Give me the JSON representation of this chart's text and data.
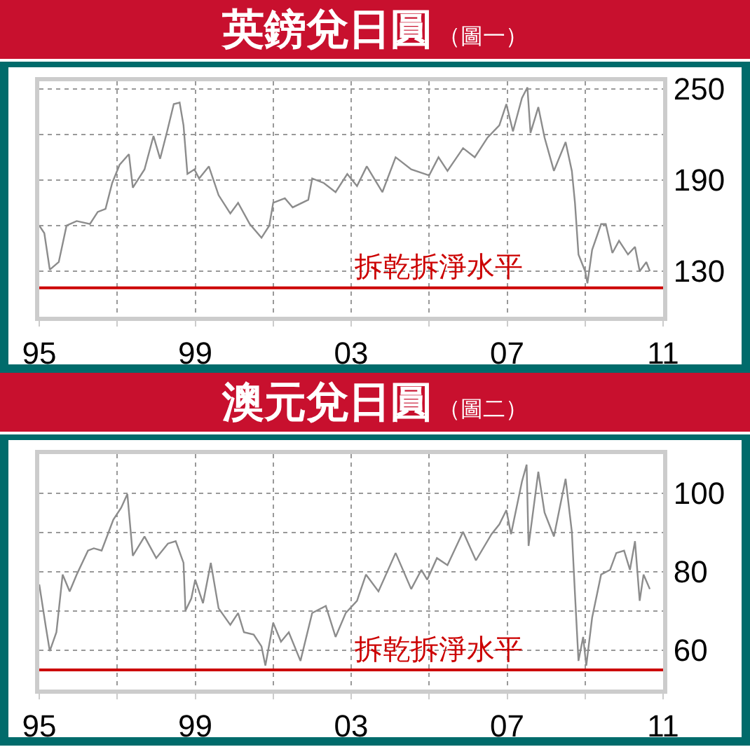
{
  "chart_data": [
    {
      "type": "line",
      "title": "英鎊兌日圓",
      "subtitle": "（圖一）",
      "grid": true,
      "xlim": [
        1995,
        2011
      ],
      "xticks": [
        {
          "value": 1995,
          "label": "95"
        },
        {
          "value": 1997,
          "label": null
        },
        {
          "value": 1999,
          "label": "99"
        },
        {
          "value": 2001,
          "label": null
        },
        {
          "value": 2003,
          "label": "03"
        },
        {
          "value": 2005,
          "label": null
        },
        {
          "value": 2007,
          "label": "07"
        },
        {
          "value": 2009,
          "label": null
        },
        {
          "value": 2011,
          "label": "11"
        }
      ],
      "ylim": [
        100,
        255
      ],
      "yticks": [
        130,
        {
          "value": 160,
          "label": null
        },
        190,
        {
          "value": 220,
          "label": null
        },
        250
      ],
      "ref_lines": [
        {
          "axis": "y",
          "value": 119,
          "label": "拆乾拆淨水平",
          "color": "#cc0000"
        }
      ],
      "series": [
        {
          "color": "#8c8c8c",
          "x": [
            1995.0,
            1995.13,
            1995.27,
            1995.5,
            1995.7,
            1995.96,
            1996.3,
            1996.5,
            1996.7,
            1996.87,
            1997.06,
            1997.3,
            1997.4,
            1997.7,
            1997.93,
            1998.1,
            1998.28,
            1998.45,
            1998.6,
            1998.7,
            1998.8,
            1998.98,
            1999.1,
            1999.35,
            1999.6,
            1999.9,
            2000.1,
            2000.4,
            2000.7,
            2000.9,
            2001.0,
            2001.3,
            2001.5,
            2001.9,
            2002.0,
            2002.3,
            2002.6,
            2002.9,
            2003.15,
            2003.4,
            2003.8,
            2004.14,
            2004.54,
            2005.0,
            2005.24,
            2005.47,
            2005.87,
            2006.17,
            2006.5,
            2006.8,
            2006.98,
            2007.15,
            2007.38,
            2007.52,
            2007.6,
            2007.8,
            2007.96,
            2008.2,
            2008.5,
            2008.66,
            2008.74,
            2008.83,
            2009.0,
            2009.06,
            2009.18,
            2009.41,
            2009.53,
            2009.7,
            2009.87,
            2010.1,
            2010.28,
            2010.4,
            2010.57,
            2010.66
          ],
          "values": [
            160,
            155,
            131,
            136,
            160,
            163,
            161,
            169,
            171,
            188,
            200,
            207,
            185,
            197,
            219,
            204,
            222,
            240,
            241,
            226,
            194,
            197,
            191,
            199,
            180,
            168,
            175,
            161,
            152,
            160,
            175,
            178,
            172,
            177,
            191,
            188,
            182,
            194,
            186,
            199,
            182,
            205,
            197,
            193,
            205,
            196,
            211,
            205,
            218,
            226,
            240,
            222,
            244,
            251,
            221,
            238,
            218,
            196,
            215,
            196,
            175,
            141,
            130,
            122,
            144,
            161,
            161,
            142,
            150,
            141,
            146,
            130,
            136,
            130
          ]
        }
      ]
    },
    {
      "type": "line",
      "title": "澳元兌日圓",
      "subtitle": "（圖二）",
      "grid": true,
      "xlim": [
        1995,
        2011
      ],
      "xticks": [
        {
          "value": 1995,
          "label": "95"
        },
        {
          "value": 1997,
          "label": null
        },
        {
          "value": 1999,
          "label": "99"
        },
        {
          "value": 2001,
          "label": null
        },
        {
          "value": 2003,
          "label": "03"
        },
        {
          "value": 2005,
          "label": null
        },
        {
          "value": 2007,
          "label": "07"
        },
        {
          "value": 2009,
          "label": null
        },
        {
          "value": 2011,
          "label": "11"
        }
      ],
      "ylim": [
        50,
        110
      ],
      "yticks": [
        60,
        {
          "value": 70,
          "label": null
        },
        80,
        {
          "value": 90,
          "label": null
        },
        100
      ],
      "ref_lines": [
        {
          "axis": "y",
          "value": 55,
          "label": "拆乾拆淨水平",
          "color": "#cc0000"
        }
      ],
      "series": [
        {
          "color": "#8c8c8c",
          "x": [
            1995.0,
            1995.17,
            1995.27,
            1995.44,
            1995.6,
            1995.78,
            1995.96,
            1996.25,
            1996.4,
            1996.6,
            1996.9,
            1997.1,
            1997.26,
            1997.4,
            1997.7,
            1998.0,
            1998.3,
            1998.5,
            1998.7,
            1998.75,
            1998.9,
            1999.0,
            1999.2,
            1999.4,
            1999.6,
            1999.9,
            2000.1,
            2000.25,
            2000.5,
            2000.7,
            2000.8,
            2001.0,
            2001.2,
            2001.4,
            2001.7,
            2002.0,
            2002.35,
            2002.6,
            2002.86,
            2003.15,
            2003.38,
            2003.7,
            2004.14,
            2004.54,
            2004.8,
            2004.95,
            2005.2,
            2005.47,
            2005.87,
            2006.2,
            2006.6,
            2006.8,
            2006.98,
            2007.1,
            2007.38,
            2007.5,
            2007.55,
            2007.8,
            2007.96,
            2008.2,
            2008.5,
            2008.66,
            2008.74,
            2008.83,
            2008.95,
            2009.03,
            2009.18,
            2009.41,
            2009.64,
            2009.8,
            2010.0,
            2010.15,
            2010.28,
            2010.4,
            2010.5,
            2010.66
          ],
          "values": [
            76.8,
            65.9,
            59.8,
            64.6,
            79.3,
            75,
            79.3,
            85.4,
            86,
            85.4,
            93.3,
            96.3,
            99.8,
            84.1,
            89,
            83.5,
            87.2,
            87.8,
            82.3,
            70.1,
            73.2,
            78,
            72,
            82.3,
            70.7,
            66.5,
            69.5,
            64.6,
            64,
            61,
            56.1,
            67,
            62.2,
            64.6,
            57.3,
            69.5,
            71.3,
            63.4,
            69.5,
            72.6,
            79.3,
            75,
            84.8,
            75.6,
            80.5,
            78,
            83.5,
            81.7,
            90.2,
            82.9,
            89.6,
            92.1,
            95.7,
            89.6,
            103,
            107.3,
            86.6,
            105.5,
            95.1,
            89,
            103.7,
            90.2,
            74.4,
            57.3,
            63.4,
            56.1,
            68.3,
            79.3,
            80.5,
            84.8,
            85.4,
            80.5,
            87.8,
            72.6,
            79.3,
            75.6
          ]
        }
      ]
    }
  ]
}
